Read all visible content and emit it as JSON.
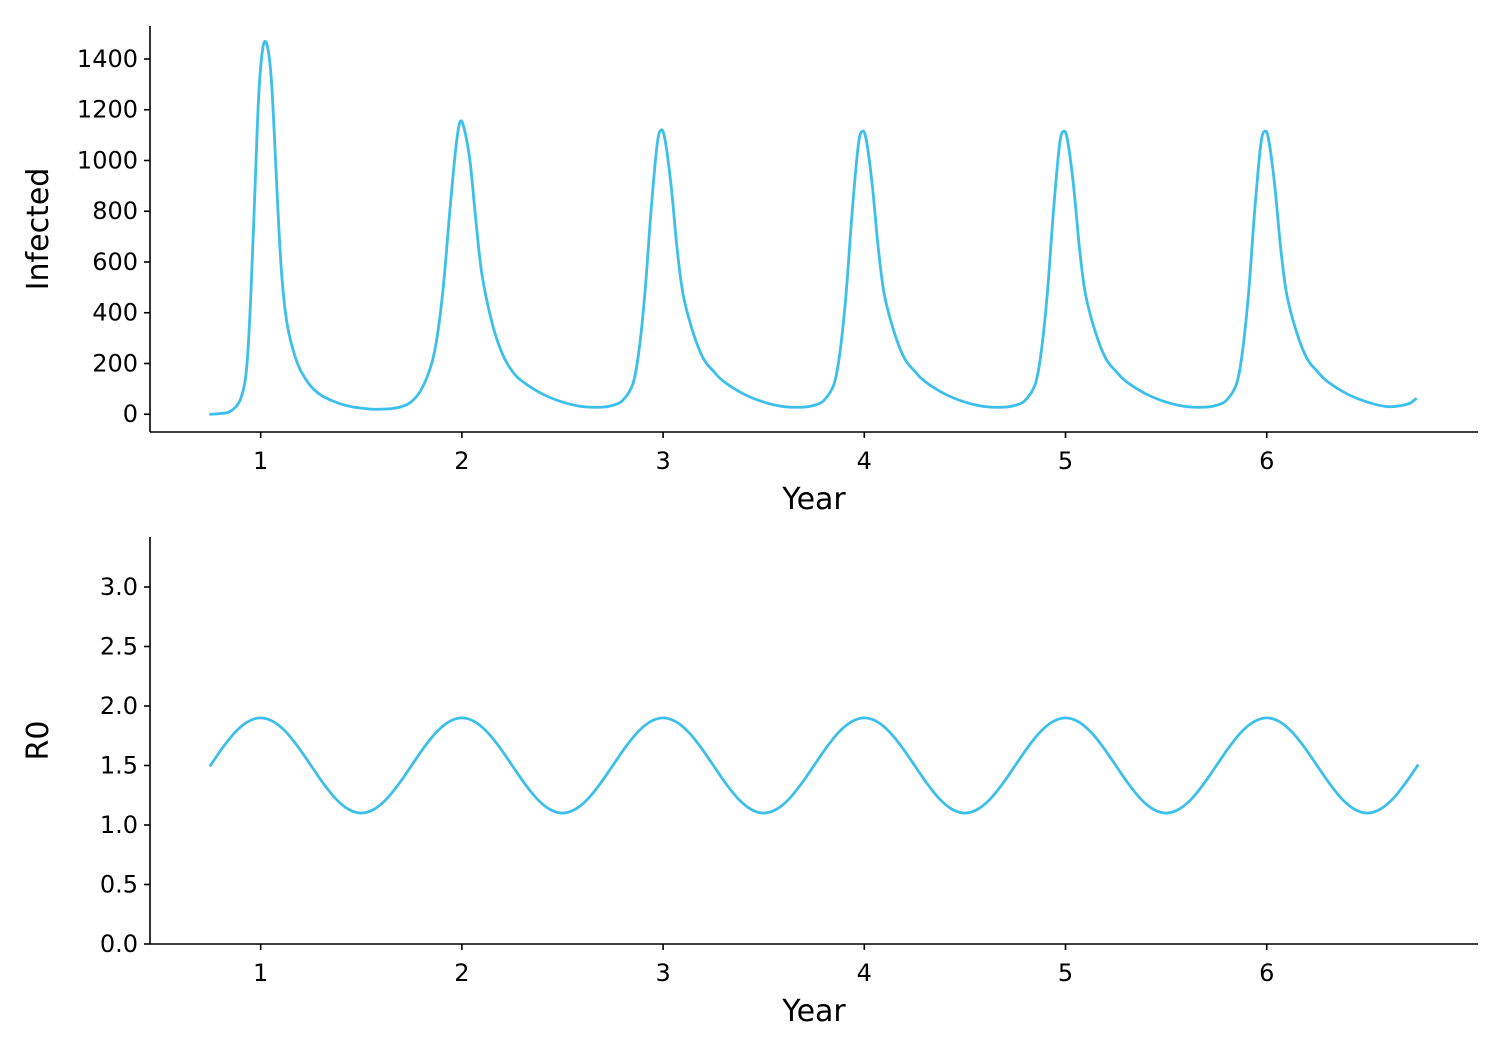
{
  "colors": {
    "series": "#3dbfeb",
    "axis": "#000000"
  },
  "chart_data": [
    {
      "type": "line",
      "title": "",
      "xlabel": "Year",
      "ylabel": "Infected",
      "xlim": [
        0.45,
        7.05
      ],
      "ylim": [
        -70,
        1530
      ],
      "xticks": [
        1,
        2,
        3,
        4,
        5,
        6
      ],
      "xtick_labels": [
        "1",
        "2",
        "3",
        "4",
        "5",
        "6"
      ],
      "yticks": [
        0,
        200,
        400,
        600,
        800,
        1000,
        1200,
        1400
      ],
      "ytick_labels": [
        "0",
        "200",
        "400",
        "600",
        "800",
        "1000",
        "1200",
        "1400"
      ],
      "grid": false,
      "legend": "none",
      "series": [
        {
          "x": [
            0.75,
            0.8,
            0.85,
            0.9,
            0.93,
            0.95,
            0.97,
            0.99,
            1.01,
            1.03,
            1.05,
            1.065,
            1.08,
            1.1,
            1.12,
            1.14,
            1.17,
            1.2,
            1.25,
            1.3,
            1.35,
            1.4,
            1.45,
            1.5,
            1.55,
            1.6,
            1.65,
            1.7,
            1.75,
            1.8,
            1.85,
            1.88,
            1.91,
            1.94,
            1.97,
            1.99,
            2.01,
            2.04,
            2.07,
            2.1,
            2.15,
            2.2,
            2.25,
            2.3,
            2.4,
            2.5,
            2.6,
            2.7,
            2.75,
            2.8,
            2.85,
            2.88,
            2.91,
            2.94,
            2.97,
            2.99,
            3.01,
            3.04,
            3.07,
            3.1,
            3.15,
            3.2,
            3.25,
            3.3,
            3.4,
            3.5,
            3.6,
            3.7,
            3.75,
            3.8,
            3.85,
            3.88,
            3.91,
            3.94,
            3.97,
            3.99,
            4.01,
            4.04,
            4.07,
            4.1,
            4.15,
            4.2,
            4.25,
            4.3,
            4.4,
            4.5,
            4.6,
            4.7,
            4.75,
            4.8,
            4.85,
            4.88,
            4.91,
            4.94,
            4.97,
            4.99,
            5.01,
            5.04,
            5.07,
            5.1,
            5.15,
            5.2,
            5.25,
            5.3,
            5.4,
            5.5,
            5.6,
            5.7,
            5.75,
            5.8,
            5.85,
            5.88,
            5.91,
            5.94,
            5.97,
            5.99,
            6.01,
            6.04,
            6.07,
            6.1,
            6.15,
            6.2,
            6.25,
            6.3,
            6.4,
            6.5,
            6.6,
            6.7,
            6.74
          ],
          "y": [
            0,
            3,
            12,
            60,
            180,
            450,
            850,
            1250,
            1440,
            1460,
            1350,
            1150,
            900,
            600,
            420,
            320,
            230,
            170,
            110,
            75,
            55,
            40,
            30,
            24,
            20,
            20,
            22,
            30,
            50,
            100,
            200,
            320,
            520,
            800,
            1050,
            1150,
            1130,
            1000,
            760,
            550,
            360,
            240,
            170,
            130,
            80,
            48,
            30,
            28,
            35,
            55,
            120,
            250,
            480,
            800,
            1060,
            1120,
            1080,
            900,
            650,
            470,
            320,
            220,
            170,
            130,
            80,
            48,
            30,
            28,
            35,
            55,
            120,
            250,
            480,
            800,
            1060,
            1115,
            1080,
            900,
            650,
            470,
            320,
            220,
            170,
            130,
            80,
            48,
            30,
            28,
            35,
            55,
            120,
            250,
            480,
            800,
            1060,
            1115,
            1080,
            900,
            650,
            470,
            320,
            220,
            170,
            130,
            80,
            48,
            30,
            28,
            35,
            55,
            120,
            250,
            480,
            800,
            1060,
            1115,
            1080,
            900,
            650,
            470,
            320,
            220,
            170,
            130,
            80,
            48,
            30,
            40,
            60
          ]
        }
      ]
    },
    {
      "type": "line",
      "title": "",
      "xlabel": "Year",
      "ylabel": "R0",
      "xlim": [
        0.45,
        7.05
      ],
      "ylim": [
        0.0,
        3.42
      ],
      "xticks": [
        1,
        2,
        3,
        4,
        5,
        6
      ],
      "xtick_labels": [
        "1",
        "2",
        "3",
        "4",
        "5",
        "6"
      ],
      "yticks": [
        0.0,
        0.5,
        1.0,
        1.5,
        2.0,
        2.5,
        3.0
      ],
      "ytick_labels": [
        "0.0",
        "0.5",
        "1.0",
        "1.5",
        "2.0",
        "2.5",
        "3.0"
      ],
      "grid": false,
      "legend": "none",
      "series": [
        {
          "x": [
            0.75,
            0.8125,
            0.875,
            0.9375,
            1.0,
            1.0625,
            1.125,
            1.1875,
            1.25,
            1.3125,
            1.375,
            1.4375,
            1.5,
            1.5625,
            1.625,
            1.6875,
            1.75,
            1.8125,
            1.875,
            1.9375,
            2.0,
            2.0625,
            2.125,
            2.1875,
            2.25,
            2.3125,
            2.375,
            2.4375,
            2.5,
            2.5625,
            2.625,
            2.6875,
            2.75,
            2.8125,
            2.875,
            2.9375,
            3.0,
            3.0625,
            3.125,
            3.1875,
            3.25,
            3.3125,
            3.375,
            3.4375,
            3.5,
            3.5625,
            3.625,
            3.6875,
            3.75,
            3.8125,
            3.875,
            3.9375,
            4.0,
            4.0625,
            4.125,
            4.1875,
            4.25,
            4.3125,
            4.375,
            4.4375,
            4.5,
            4.5625,
            4.625,
            4.6875,
            4.75,
            4.8125,
            4.875,
            4.9375,
            5.0,
            5.0625,
            5.125,
            5.1875,
            5.25,
            5.3125,
            5.375,
            5.4375,
            5.5,
            5.5625,
            5.625,
            5.6875,
            5.75,
            5.8125,
            5.875,
            5.9375,
            6.0,
            6.0625,
            6.125,
            6.1875,
            6.25,
            6.3125,
            6.375,
            6.4375,
            6.5,
            6.5625,
            6.625,
            6.6875,
            6.75
          ],
          "y": [
            1.5,
            1.653,
            1.783,
            1.869,
            1.9,
            1.869,
            1.783,
            1.653,
            1.5,
            1.347,
            1.217,
            1.131,
            1.1,
            1.131,
            1.217,
            1.347,
            1.5,
            1.653,
            1.783,
            1.869,
            1.9,
            1.869,
            1.783,
            1.653,
            1.5,
            1.347,
            1.217,
            1.131,
            1.1,
            1.131,
            1.217,
            1.347,
            1.5,
            1.653,
            1.783,
            1.869,
            1.9,
            1.869,
            1.783,
            1.653,
            1.5,
            1.347,
            1.217,
            1.131,
            1.1,
            1.131,
            1.217,
            1.347,
            1.5,
            1.653,
            1.783,
            1.869,
            1.9,
            1.869,
            1.783,
            1.653,
            1.5,
            1.347,
            1.217,
            1.131,
            1.1,
            1.131,
            1.217,
            1.347,
            1.5,
            1.653,
            1.783,
            1.869,
            1.9,
            1.869,
            1.783,
            1.653,
            1.5,
            1.347,
            1.217,
            1.131,
            1.1,
            1.131,
            1.217,
            1.347,
            1.5,
            1.653,
            1.783,
            1.869,
            1.9,
            1.869,
            1.783,
            1.653,
            1.5,
            1.347,
            1.217,
            1.131,
            1.1,
            1.131,
            1.217,
            1.347,
            1.5
          ]
        }
      ]
    }
  ]
}
